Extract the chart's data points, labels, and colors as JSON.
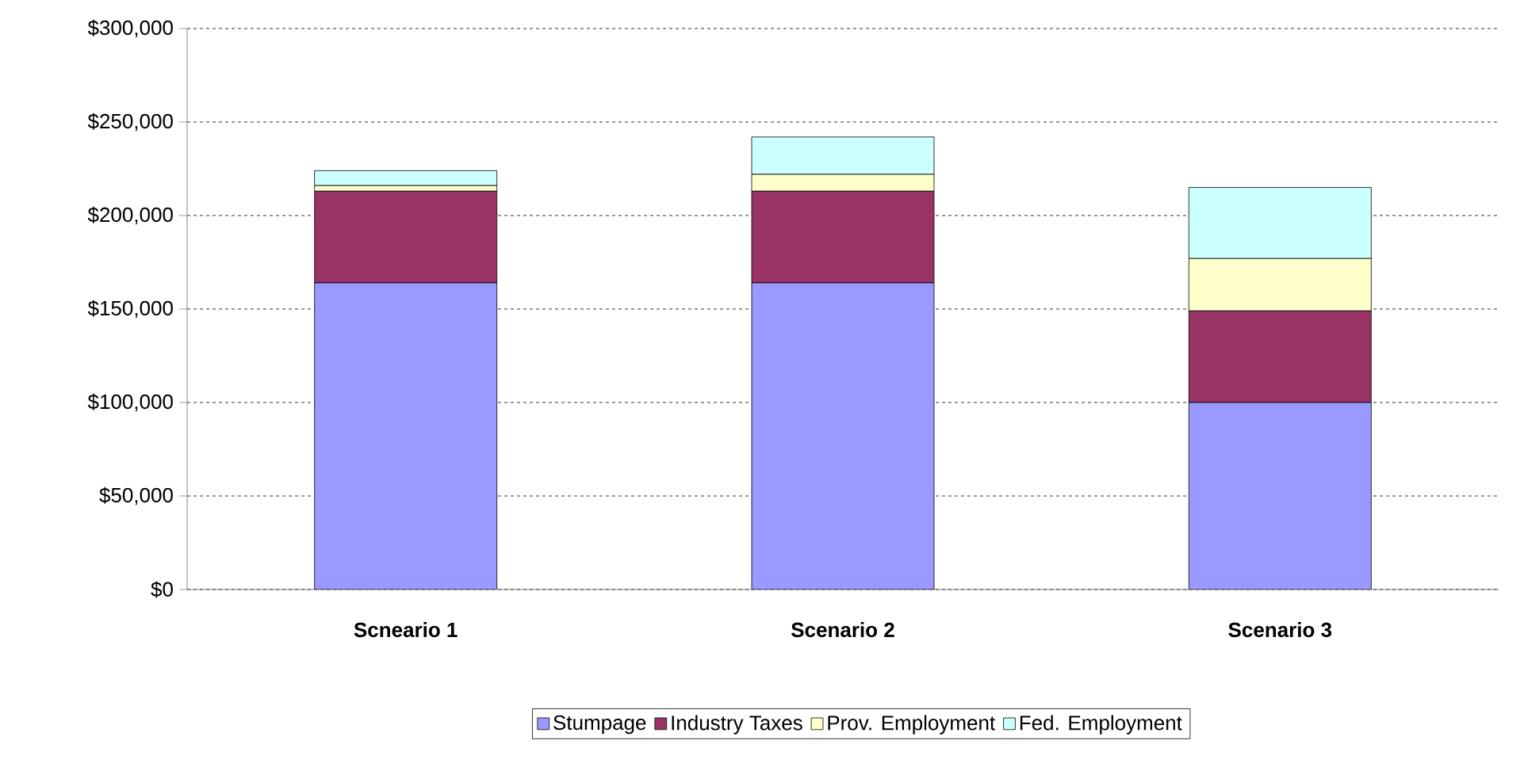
{
  "chart_data": {
    "type": "bar",
    "stacked": true,
    "categories": [
      "Scneario 1",
      "Scenario 2",
      "Scenario 3"
    ],
    "series": [
      {
        "name": "Stumpage",
        "color": "#9999ff",
        "values": [
          164000,
          164000,
          100000
        ]
      },
      {
        "name": "Industry Taxes",
        "color": "#993366",
        "values": [
          49000,
          49000,
          49000
        ]
      },
      {
        "name": "Prov. Employment",
        "color": "#ffffcc",
        "values": [
          3000,
          9000,
          28000
        ]
      },
      {
        "name": "Fed. Employment",
        "color": "#ccffff",
        "values": [
          8000,
          20000,
          38000
        ]
      }
    ],
    "ylim": [
      0,
      300000
    ],
    "yticks": [
      {
        "value": 0,
        "label": "$0"
      },
      {
        "value": 50000,
        "label": "$50,000"
      },
      {
        "value": 100000,
        "label": "$100,000"
      },
      {
        "value": 150000,
        "label": "$150,000"
      },
      {
        "value": 200000,
        "label": "$200,000"
      },
      {
        "value": 250000,
        "label": "$250,000"
      },
      {
        "value": 300000,
        "label": "$300,000"
      }
    ],
    "grid": "y",
    "legend": "bottom"
  }
}
